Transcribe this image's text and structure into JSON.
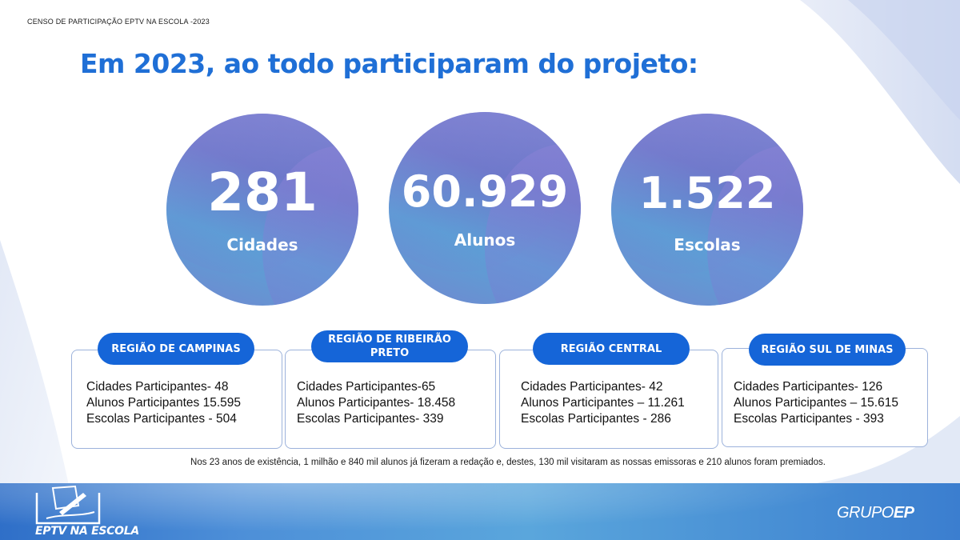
{
  "header": {
    "label": "CENSO DE PARTICIPAÇÃO EPTV NA ESCOLA -2023"
  },
  "headline": "Em 2023, ao todo participaram do projeto:",
  "stats": [
    {
      "value": "281",
      "label": "Cidades"
    },
    {
      "value": "60.929",
      "label": "Alunos"
    },
    {
      "value": "1.522",
      "label": "Escolas"
    }
  ],
  "regions": [
    {
      "title": "REGIÃO DE CAMPINAS",
      "lines": [
        "Cidades Participantes- 48",
        "Alunos Participantes 15.595",
        "Escolas Participantes - 504"
      ]
    },
    {
      "title": "REGIÃO DE RIBEIRÃO PRETO",
      "lines": [
        "Cidades Participantes-65",
        "Alunos Participantes- 18.458",
        "Escolas Participantes- 339"
      ]
    },
    {
      "title": "REGIÃO CENTRAL",
      "lines": [
        "Cidades Participantes- 42",
        "Alunos Participantes – 11.261",
        "Escolas Participantes - 286"
      ]
    },
    {
      "title": "REGIÃO SUL DE MINAS",
      "lines": [
        "Cidades Participantes- 126",
        "Alunos Participantes – 15.615",
        "Escolas Participantes - 393"
      ]
    }
  ],
  "footnote": "Nos 23 anos de existência, 1 milhão e 840 mil alunos já fizeram a redação e, destes, 130 mil visitaram as nossas emissoras e 210 alunos foram premiados.",
  "logos": {
    "eptv": "EPTV NA ESCOLA",
    "grupo_a": "GRUPO",
    "grupo_b": "EP"
  },
  "colors": {
    "headline": "#1f6fd6",
    "pill": "#1565d8",
    "card_border": "#9cb2db"
  }
}
